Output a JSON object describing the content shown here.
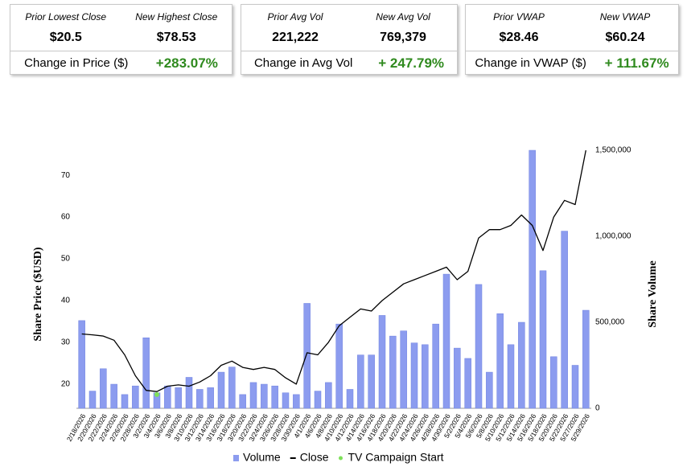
{
  "stats": [
    {
      "prior_label": "Prior Lowest Close",
      "prior_value": "$20.5",
      "new_label": "New Highest Close",
      "new_value": "$78.53",
      "change_label": "Change in Price ($)",
      "change_value": "+283.07%"
    },
    {
      "prior_label": "Prior Avg Vol",
      "prior_value": "221,222",
      "new_label": "New Avg Vol",
      "new_value": "769,379",
      "change_label": "Change in Avg Vol",
      "change_value": "+ 247.79%"
    },
    {
      "prior_label": "Prior VWAP",
      "prior_value": "$28.46",
      "new_label": "New VWAP",
      "new_value": "$60.24",
      "change_label": "Change in VWAP ($)",
      "change_value": "+ 111.67%"
    }
  ],
  "chart_data": {
    "type": "combo",
    "y_label": "Share Price ($USD)",
    "y2_label": "Share Volume",
    "categories": [
      "2/18/2026",
      "2/20/2026",
      "2/22/2026",
      "2/24/2026",
      "2/26/2026",
      "2/28/2026",
      "3/2/2026",
      "3/4/2026",
      "3/6/2026",
      "3/8/2026",
      "3/10/2026",
      "3/12/2026",
      "3/14/2026",
      "3/16/2026",
      "3/18/2026",
      "3/20/2026",
      "3/22/2026",
      "3/24/2026",
      "3/26/2026",
      "3/28/2026",
      "3/30/2026",
      "4/1/2026",
      "4/6/2026",
      "4/8/2026",
      "4/10/2026",
      "4/12/2026",
      "4/14/2026",
      "4/16/2026",
      "4/18/2026",
      "4/20/2026",
      "4/22/2026",
      "4/24/2026",
      "4/26/2026",
      "4/28/2026",
      "4/30/2026",
      "5/2/2026",
      "5/4/2026",
      "5/6/2026",
      "5/8/2026",
      "5/10/2026",
      "5/12/2026",
      "5/14/2026",
      "5/16/2026",
      "5/18/2026",
      "5/20/2026",
      "5/22/2026",
      "5/27/2026",
      "5/29/2026"
    ],
    "series": [
      {
        "name": "Volume",
        "kind": "bar",
        "axis": "y2",
        "color": "#8c9cef",
        "values": [
          510000,
          100000,
          230000,
          140000,
          80000,
          130000,
          410000,
          90000,
          130000,
          120000,
          180000,
          110000,
          120000,
          210000,
          240000,
          80000,
          150000,
          140000,
          130000,
          90000,
          80000,
          610000,
          100000,
          150000,
          490000,
          110000,
          310000,
          310000,
          540000,
          420000,
          450000,
          380000,
          370000,
          490000,
          780000,
          350000,
          290000,
          720000,
          210000,
          550000,
          370000,
          500000,
          1500000,
          800000,
          300000,
          1030000,
          250000,
          570000
        ]
      },
      {
        "name": "Close",
        "kind": "line",
        "color": "#000000",
        "values": [
          32,
          31.8,
          31.5,
          30.5,
          27,
          22,
          18.5,
          18.2,
          19.5,
          19.8,
          19.5,
          20.5,
          22,
          24.5,
          25.5,
          24,
          23.5,
          24,
          23.5,
          21.5,
          20,
          27.5,
          27,
          30,
          34,
          36,
          38,
          37.5,
          40,
          42,
          44,
          45,
          46,
          47,
          48,
          45,
          47,
          55,
          57,
          57,
          58,
          60.5,
          58,
          52,
          60,
          64,
          63,
          76
        ]
      },
      {
        "name": "TV Campaign Start",
        "kind": "point",
        "color": "#7ee05a",
        "values": [
          null,
          null,
          null,
          null,
          null,
          null,
          null,
          17.5,
          null,
          null,
          null,
          null,
          null,
          null,
          null,
          null,
          null,
          null,
          null,
          null,
          null,
          null,
          null,
          null,
          null,
          null,
          null,
          null,
          null,
          null,
          null,
          null,
          null,
          null,
          null,
          null,
          null,
          null,
          null,
          null,
          null,
          null,
          null,
          null,
          null,
          null,
          null,
          null
        ]
      }
    ],
    "ylim": [
      14.2,
      76
    ],
    "yticks": [
      20,
      30,
      40,
      50,
      60,
      70
    ],
    "y2lim": [
      0,
      1500000
    ],
    "y2ticks": [
      0,
      {
        "value": 500000,
        "label": "500,000"
      },
      {
        "value": 1000000,
        "label": "1,000,000"
      },
      {
        "value": 1500000,
        "label": "1,500,000"
      }
    ]
  }
}
